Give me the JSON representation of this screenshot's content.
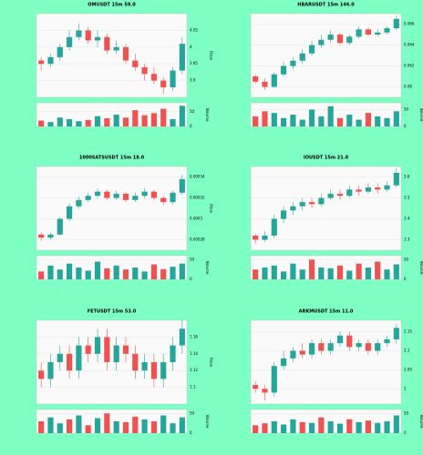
{
  "chart_data": [
    {
      "type": "candlestick",
      "title": "OMUSDT 15m 59.0",
      "y_label": "Price",
      "y2_label": "Volume",
      "up_color": "#26a69a",
      "down_color": "#ef5350",
      "grid": true,
      "open": [
        3.96,
        3.95,
        3.97,
        4.0,
        4.03,
        4.05,
        4.02,
        4.03,
        3.99,
        4.0,
        3.96,
        3.94,
        3.92,
        3.9,
        3.88,
        3.93
      ],
      "high": [
        3.97,
        3.98,
        4.01,
        4.05,
        4.07,
        4.06,
        4.05,
        4.04,
        4.02,
        4.01,
        3.98,
        3.95,
        3.94,
        3.91,
        3.94,
        4.03
      ],
      "low": [
        3.93,
        3.94,
        3.96,
        3.99,
        4.02,
        4.01,
        4.0,
        3.98,
        3.98,
        3.95,
        3.93,
        3.9,
        3.89,
        3.86,
        3.87,
        3.92
      ],
      "close": [
        3.95,
        3.97,
        4.0,
        4.03,
        4.05,
        4.02,
        4.03,
        3.99,
        4.0,
        3.96,
        3.94,
        3.92,
        3.9,
        3.88,
        3.93,
        4.01
      ],
      "volume": [
        20,
        15,
        30,
        25,
        18,
        22,
        35,
        28,
        40,
        30,
        55,
        38,
        45,
        60,
        25,
        70
      ],
      "ylim": [
        3.85,
        4.1
      ],
      "yticks": [
        3.9,
        3.95,
        4.0,
        4.05
      ],
      "y2lim": [
        0,
        80
      ],
      "y2ticks": [
        0,
        50
      ]
    },
    {
      "type": "candlestick",
      "title": "HBARUSDT 15m 146.0",
      "y_label": "Price",
      "y2_label": "Volume",
      "up_color": "#26a69a",
      "down_color": "#ef5350",
      "grid": true,
      "open": [
        0.061,
        0.0605,
        0.06,
        0.0612,
        0.062,
        0.0625,
        0.0632,
        0.064,
        0.0645,
        0.065,
        0.0642,
        0.0648,
        0.0655,
        0.065,
        0.0652,
        0.0656
      ],
      "high": [
        0.0612,
        0.0608,
        0.0614,
        0.0624,
        0.0628,
        0.0636,
        0.0644,
        0.065,
        0.0654,
        0.0652,
        0.065,
        0.0658,
        0.0657,
        0.0655,
        0.0658,
        0.0668
      ],
      "low": [
        0.0603,
        0.0597,
        0.0599,
        0.061,
        0.0617,
        0.0622,
        0.063,
        0.0637,
        0.0642,
        0.064,
        0.064,
        0.0646,
        0.0648,
        0.0648,
        0.065,
        0.0654
      ],
      "close": [
        0.0605,
        0.06,
        0.0612,
        0.062,
        0.0625,
        0.0632,
        0.064,
        0.0645,
        0.065,
        0.0642,
        0.0648,
        0.0655,
        0.065,
        0.0652,
        0.0656,
        0.0665
      ],
      "volume": [
        30,
        45,
        40,
        25,
        35,
        20,
        50,
        30,
        60,
        25,
        35,
        20,
        40,
        30,
        25,
        45
      ],
      "ylim": [
        0.059,
        0.067
      ],
      "yticks": [
        0.06,
        0.062,
        0.064,
        0.066
      ],
      "y2lim": [
        0,
        70
      ],
      "y2ticks": [
        0,
        50
      ]
    },
    {
      "type": "candlestick",
      "title": "1000SATSUSDT 15m 18.0",
      "y_label": "Price",
      "y2_label": "Volume",
      "up_color": "#26a69a",
      "down_color": "#ef5350",
      "grid": true,
      "open": [
        0.000285,
        0.000282,
        0.000285,
        0.0003,
        0.000312,
        0.000318,
        0.000322,
        0.000326,
        0.00032,
        0.000324,
        0.000318,
        0.000322,
        0.000326,
        0.00032,
        0.000316,
        0.000325
      ],
      "high": [
        0.000287,
        0.000287,
        0.000302,
        0.000315,
        0.000321,
        0.000325,
        0.000329,
        0.000328,
        0.000327,
        0.000326,
        0.000325,
        0.000329,
        0.000328,
        0.000322,
        0.000327,
        0.000342
      ],
      "low": [
        0.000279,
        0.00028,
        0.000284,
        0.000298,
        0.00031,
        0.000316,
        0.00032,
        0.000318,
        0.000318,
        0.000316,
        0.000316,
        0.00032,
        0.000318,
        0.000313,
        0.000314,
        0.000323
      ],
      "close": [
        0.000282,
        0.000285,
        0.0003,
        0.000312,
        0.000318,
        0.000322,
        0.000326,
        0.00032,
        0.000324,
        0.000318,
        0.000322,
        0.000326,
        0.00032,
        0.000316,
        0.000325,
        0.000338
      ],
      "volume": [
        20,
        35,
        25,
        40,
        30,
        22,
        45,
        28,
        35,
        25,
        30,
        20,
        38,
        26,
        32,
        40
      ],
      "ylim": [
        0.00027,
        0.00035
      ],
      "yticks": [
        0.00028,
        0.0003,
        0.00032,
        0.00034
      ],
      "y2lim": [
        0,
        60
      ],
      "y2ticks": [
        0,
        50
      ]
    },
    {
      "type": "candlestick",
      "title": "IOUSDT 15m 21.0",
      "y_label": "Price",
      "y2_label": "Volume",
      "up_color": "#26a69a",
      "down_color": "#ef5350",
      "grid": true,
      "open": [
        3.32,
        3.3,
        3.32,
        3.4,
        3.44,
        3.46,
        3.48,
        3.47,
        3.5,
        3.52,
        3.51,
        3.54,
        3.53,
        3.55,
        3.54,
        3.56
      ],
      "high": [
        3.33,
        3.34,
        3.42,
        3.46,
        3.48,
        3.5,
        3.5,
        3.52,
        3.54,
        3.54,
        3.56,
        3.56,
        3.57,
        3.57,
        3.58,
        3.64
      ],
      "low": [
        3.28,
        3.29,
        3.31,
        3.38,
        3.42,
        3.44,
        3.45,
        3.46,
        3.49,
        3.49,
        3.5,
        3.51,
        3.52,
        3.52,
        3.53,
        3.55
      ],
      "close": [
        3.3,
        3.32,
        3.4,
        3.44,
        3.46,
        3.48,
        3.47,
        3.5,
        3.52,
        3.51,
        3.54,
        3.53,
        3.55,
        3.54,
        3.56,
        3.62
      ],
      "volume": [
        25,
        30,
        35,
        20,
        40,
        25,
        50,
        30,
        28,
        35,
        22,
        40,
        30,
        45,
        25,
        38
      ],
      "ylim": [
        3.25,
        3.65
      ],
      "yticks": [
        3.3,
        3.4,
        3.5,
        3.6
      ],
      "y2lim": [
        0,
        60
      ],
      "y2ticks": [
        0,
        50
      ]
    },
    {
      "type": "candlestick",
      "title": "FETUSDT 15m 53.0",
      "y_label": "Price",
      "y2_label": "Volume",
      "up_color": "#26a69a",
      "down_color": "#ef5350",
      "grid": true,
      "open": [
        1.12,
        1.11,
        1.13,
        1.14,
        1.12,
        1.15,
        1.14,
        1.16,
        1.13,
        1.15,
        1.14,
        1.12,
        1.13,
        1.11,
        1.13,
        1.15
      ],
      "high": [
        1.13,
        1.14,
        1.15,
        1.15,
        1.16,
        1.16,
        1.17,
        1.17,
        1.16,
        1.16,
        1.15,
        1.14,
        1.14,
        1.14,
        1.16,
        1.18
      ],
      "low": [
        1.1,
        1.1,
        1.12,
        1.11,
        1.11,
        1.13,
        1.13,
        1.12,
        1.12,
        1.13,
        1.11,
        1.11,
        1.1,
        1.1,
        1.12,
        1.14
      ],
      "close": [
        1.11,
        1.13,
        1.14,
        1.12,
        1.15,
        1.14,
        1.16,
        1.13,
        1.15,
        1.14,
        1.12,
        1.13,
        1.11,
        1.13,
        1.15,
        1.17
      ],
      "volume": [
        30,
        40,
        25,
        35,
        45,
        20,
        38,
        50,
        30,
        28,
        42,
        35,
        30,
        45,
        25,
        40
      ],
      "ylim": [
        1.08,
        1.18
      ],
      "yticks": [
        1.1,
        1.12,
        1.14,
        1.16
      ],
      "y2lim": [
        0,
        60
      ],
      "y2ticks": [
        0,
        50
      ]
    },
    {
      "type": "candlestick",
      "title": "ARKMUSDT 15m 11.0",
      "y_label": "Price",
      "y2_label": "Volume",
      "up_color": "#26a69a",
      "down_color": "#ef5350",
      "grid": true,
      "open": [
        2.01,
        2.0,
        1.99,
        2.06,
        2.08,
        2.1,
        2.09,
        2.12,
        2.1,
        2.12,
        2.14,
        2.11,
        2.12,
        2.1,
        2.12,
        2.13
      ],
      "high": [
        2.02,
        2.01,
        2.07,
        2.1,
        2.11,
        2.12,
        2.13,
        2.13,
        2.13,
        2.15,
        2.15,
        2.13,
        2.13,
        2.13,
        2.14,
        2.17
      ],
      "low": [
        1.99,
        1.97,
        1.98,
        2.05,
        2.07,
        2.08,
        2.08,
        2.09,
        2.09,
        2.11,
        2.1,
        2.1,
        2.09,
        2.09,
        2.11,
        2.12
      ],
      "close": [
        2.0,
        1.99,
        2.06,
        2.08,
        2.1,
        2.09,
        2.12,
        2.1,
        2.12,
        2.14,
        2.11,
        2.12,
        2.1,
        2.12,
        2.13,
        2.16
      ],
      "volume": [
        20,
        25,
        30,
        22,
        35,
        28,
        26,
        40,
        30,
        24,
        35,
        28,
        32,
        26,
        30,
        45
      ],
      "ylim": [
        1.96,
        2.18
      ],
      "yticks": [
        2.0,
        2.05,
        2.1,
        2.15
      ],
      "y2lim": [
        0,
        60
      ],
      "y2ticks": [
        0,
        50
      ]
    }
  ]
}
